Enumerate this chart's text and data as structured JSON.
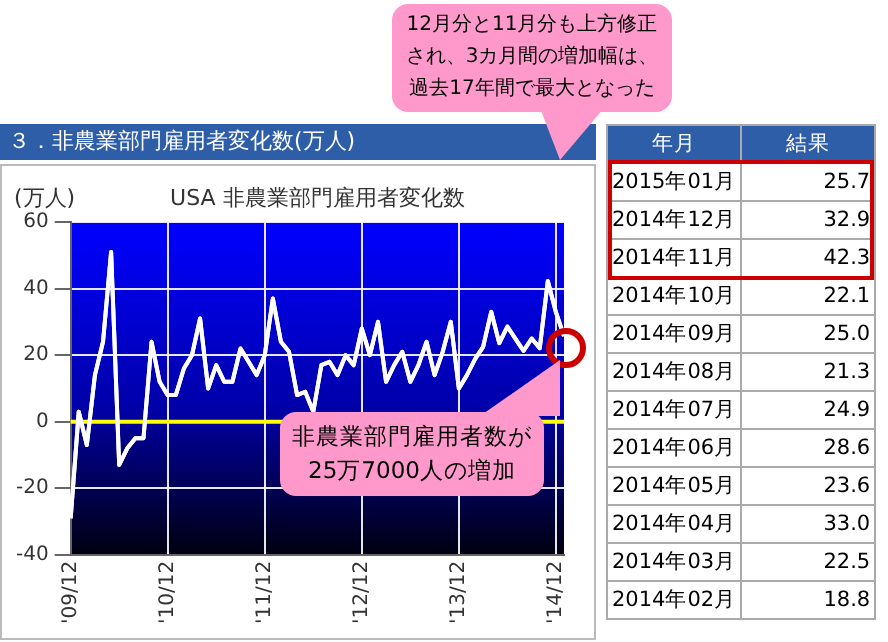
{
  "chart_data": {
    "type": "line",
    "title": "３．非農業部門雇用者変化数(万人)",
    "subtitle": "USA 非農業部門雇用者変化数",
    "ylabel": "(万人)",
    "categories": [
      "'09/12",
      null,
      null,
      null,
      null,
      null,
      null,
      null,
      null,
      null,
      null,
      null,
      "'10/12",
      null,
      null,
      null,
      null,
      null,
      null,
      null,
      null,
      null,
      null,
      null,
      "'11/12",
      null,
      null,
      null,
      null,
      null,
      null,
      null,
      null,
      null,
      null,
      null,
      "'12/12",
      null,
      null,
      null,
      null,
      null,
      null,
      null,
      null,
      null,
      null,
      null,
      "'13/12",
      null,
      null,
      null,
      null,
      null,
      null,
      null,
      null,
      null,
      null,
      null,
      "'14/12",
      null
    ],
    "series": [
      {
        "color": "#ffffff",
        "values": [
          -29,
          3,
          -7,
          14,
          24,
          51,
          -13,
          -8,
          -5,
          -5,
          24,
          12,
          8,
          8,
          16,
          20,
          31,
          10,
          17,
          12,
          12,
          22,
          18,
          14,
          20,
          37,
          24,
          21,
          8,
          9,
          3,
          17,
          18,
          14,
          20,
          17,
          28,
          20,
          30,
          12,
          17,
          21,
          12,
          17,
          24,
          14,
          21,
          30,
          10,
          14,
          18.8,
          22.5,
          33.0,
          23.6,
          28.6,
          24.9,
          21.3,
          25.0,
          22.1,
          42.3,
          32.9,
          25.7
        ]
      }
    ],
    "ylim": [
      -40,
      60
    ],
    "yticks": [
      -40,
      -20,
      0,
      20,
      40,
      60
    ],
    "grid": true,
    "legend": false,
    "marker": "none",
    "line_style": "solid",
    "ref_lines": [
      {
        "axis": "y",
        "value": 0,
        "color": "#ffff00"
      }
    ],
    "annotations": [
      "12月分と11月分も上方修正され、3カ月間の増加幅は、過去17年間で最大となった",
      "非農業部門雇用者数が25万7000人の増加",
      "年月",
      "結果",
      "2015年01月",
      "25.7",
      "2014年12月",
      "32.9",
      "2014年11月",
      "42.3",
      "2014年10月",
      "22.1",
      "2014年09月",
      "25.0",
      "2014年08月",
      "21.3",
      "2014年07月",
      "24.9",
      "2014年06月",
      "28.6",
      "2014年05月",
      "23.6",
      "2014年04月",
      "33.0",
      "2014年03月",
      "22.5",
      "2014年02月",
      "18.8"
    ]
  }
}
